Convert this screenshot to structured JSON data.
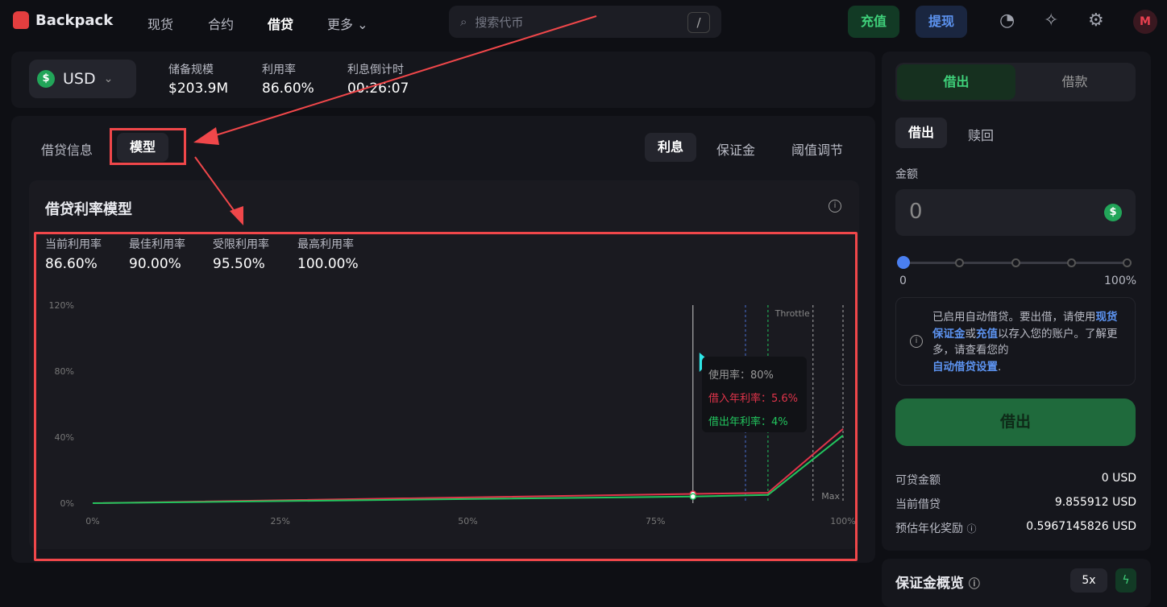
{
  "nav": {
    "brand": "Backpack",
    "items": [
      "现货",
      "合约",
      "借贷",
      "更多"
    ],
    "active": 2,
    "search_placeholder": "搜索代币",
    "search_shortcut": "/",
    "deposit": "充值",
    "withdraw": "提现",
    "avatar": "M"
  },
  "market": {
    "currency": "USD",
    "stats": [
      {
        "label": "储备规模",
        "value": "$203.9M"
      },
      {
        "label": "利用率",
        "value": "86.60%"
      },
      {
        "label": "利息倒计时",
        "value": "00:26:07"
      }
    ]
  },
  "main": {
    "tabs": [
      "借贷信息",
      "模型"
    ],
    "active_tab": 1,
    "subtabs": [
      "利息",
      "保证金",
      "阈值调节"
    ],
    "active_subtab": 0,
    "title": "借贷利率模型",
    "stats": [
      {
        "label": "当前利用率",
        "value": "86.60%"
      },
      {
        "label": "最佳利用率",
        "value": "90.00%"
      },
      {
        "label": "受限利用率",
        "value": "95.50%"
      },
      {
        "label": "最高利用率",
        "value": "100.00%"
      }
    ]
  },
  "chart_data": {
    "type": "line",
    "xlabel": "",
    "ylabel": "",
    "x_ticks": [
      "0%",
      "25%",
      "50%",
      "75%",
      "100%"
    ],
    "y_ticks": [
      "0%",
      "40%",
      "80%",
      "120%"
    ],
    "xlim": [
      0,
      100
    ],
    "ylim": [
      0,
      120
    ],
    "x": [
      0,
      80,
      90,
      100
    ],
    "series": [
      {
        "name": "借入年利率",
        "color": "#e0344a",
        "values": [
          0,
          5.6,
          6.3,
          45
        ]
      },
      {
        "name": "借出年利率",
        "color": "#22c55e",
        "values": [
          0,
          4,
          5,
          41
        ]
      }
    ],
    "markers": [
      {
        "x": 87,
        "color": "#4a6fd0"
      },
      {
        "x": 90,
        "color": "#22c55e"
      },
      {
        "x": 96,
        "color": "#aaaaaa",
        "label": "Throttle"
      },
      {
        "x": 100,
        "color": "#aaaaaa",
        "label": "Max"
      }
    ],
    "tooltip": {
      "x": 80,
      "util": "使用率：80%",
      "borrow": "借入年利率：5.6%",
      "lend": "借出年利率：4%"
    }
  },
  "side": {
    "tabs": [
      "借出",
      "借款"
    ],
    "subtabs": [
      "借出",
      "赎回"
    ],
    "amount_label": "金额",
    "amount_value": "0",
    "slider_min": "0",
    "slider_max": "100%",
    "slider_value": 0,
    "notice": {
      "t1": "已启用自动借贷。要出借，请使用",
      "l1": "现货保证金",
      "t2": "或",
      "l2": "充值",
      "t3": "以存入您的账户。了解更多，请查看您的",
      "l3": "自动借贷设置",
      "t4": "."
    },
    "submit": "借出",
    "rows": [
      {
        "label": "可贷金额",
        "value": "0 USD"
      },
      {
        "label": "当前借贷",
        "value": "9.855912 USD"
      },
      {
        "label": "预估年化奖励",
        "value": "0.5967145826 USD"
      }
    ],
    "margin_title": "保证金概览",
    "leverage": "5x"
  }
}
